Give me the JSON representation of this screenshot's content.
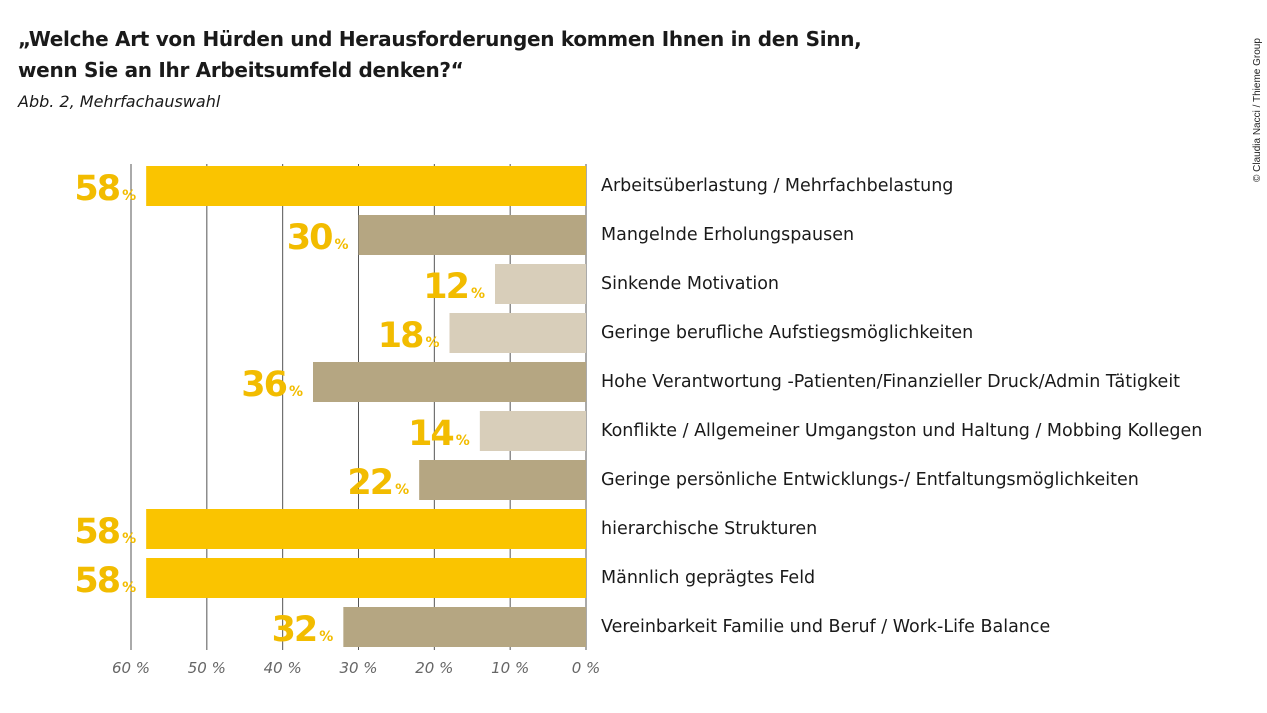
{
  "title_line1": "„Welche Art von Hürden und Herausforderungen kommen Ihnen in den Sinn,",
  "title_line2": "wenn Sie an Ihr Arbeitsumfeld denken?“",
  "subtitle": "Abb. 2, Mehrfachauswahl",
  "credit": "© Claudia Nacci / Thieme Group",
  "colors": {
    "high": "#FAC400",
    "mid": "#B5A682",
    "low": "#D8CEBA",
    "value_label": "#F2BC00",
    "grid": "#555555"
  },
  "chart_data": {
    "type": "bar",
    "orientation": "horizontal-reversed",
    "title": "",
    "xlabel": "",
    "ylabel": "",
    "xlim": [
      0,
      60
    ],
    "grid": true,
    "tick_labels": [
      "60 %",
      "50 %",
      "40 %",
      "30 %",
      "20 %",
      "10 %",
      "0 %"
    ],
    "tick_values": [
      60,
      50,
      40,
      30,
      20,
      10,
      0
    ],
    "value_suffix": "%",
    "categories": [
      "Arbeitsüberlastung / Mehrfachbelastung",
      "Mangelnde Erholungspausen",
      "Sinkende Motivation",
      "Geringe berufliche Aufstiegsmöglichkeiten",
      "Hohe Verantwortung -Patienten/Finanzieller Druck/Admin Tätigkeit",
      "Konflikte / Allgemeiner Umgangston und Haltung / Mobbing Kollegen",
      "Geringe persönliche Entwicklungs-/ Entfaltungsmöglichkeiten",
      "hierarchische Strukturen",
      "Männlich geprägtes Feld",
      "Vereinbarkeit Familie und Beruf / Work-Life Balance"
    ],
    "values": [
      58,
      30,
      12,
      18,
      36,
      14,
      22,
      58,
      58,
      32
    ],
    "bar_colors": [
      "high",
      "mid",
      "low",
      "low",
      "mid",
      "low",
      "mid",
      "high",
      "high",
      "mid"
    ]
  }
}
